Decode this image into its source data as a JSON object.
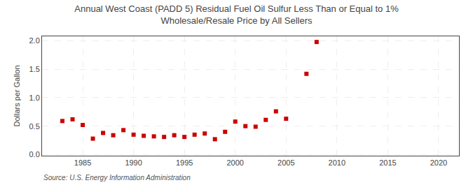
{
  "chart_data": {
    "type": "scatter",
    "title": "Annual West Coast (PADD 5) Residual Fuel Oil Sulfur Less Than or Equal to 1%\nWholesale/Resale Price by All Sellers",
    "ylabel": "Dollars per Gallon",
    "annotations": [
      "Source: U.S. Energy Information Administration"
    ],
    "x": [
      1983,
      1984,
      1985,
      1986,
      1987,
      1988,
      1989,
      1990,
      1991,
      1992,
      1993,
      1994,
      1995,
      1996,
      1997,
      1998,
      1999,
      2000,
      2001,
      2002,
      2003,
      2004,
      2005,
      2007,
      2008
    ],
    "values": [
      0.59,
      0.62,
      0.52,
      0.28,
      0.38,
      0.34,
      0.43,
      0.35,
      0.33,
      0.32,
      0.31,
      0.34,
      0.31,
      0.35,
      0.37,
      0.27,
      0.4,
      0.58,
      0.5,
      0.49,
      0.61,
      0.76,
      0.63,
      1.42,
      1.98
    ],
    "color": "#cc0000",
    "marker": "square",
    "xlim": [
      1981,
      2022
    ],
    "xticks": [
      1985,
      1990,
      1995,
      2000,
      2005,
      2010,
      2015,
      2020
    ],
    "ylim": [
      -0.02,
      2.08
    ],
    "yticks": [
      {
        "value": 0,
        "label": "0.0"
      },
      0.5,
      {
        "value": 1,
        "label": "1.0"
      },
      1.5,
      {
        "value": 2,
        "label": "2.0"
      }
    ],
    "grid": true
  }
}
